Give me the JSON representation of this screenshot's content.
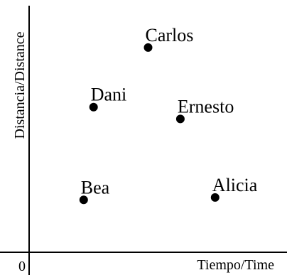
{
  "chart_data": {
    "type": "scatter",
    "xlabel": "Tiempo/Time",
    "ylabel": "Distancia/Distance",
    "origin_label": "0",
    "xlim": [
      0,
      10
    ],
    "ylim": [
      0,
      10
    ],
    "grid": false,
    "point_color": "#000000",
    "points": [
      {
        "label": "Carlos",
        "x": 4.8,
        "y": 8.6
      },
      {
        "label": "Dani",
        "x": 2.6,
        "y": 6.1
      },
      {
        "label": "Ernesto",
        "x": 6.1,
        "y": 5.6
      },
      {
        "label": "Bea",
        "x": 2.2,
        "y": 2.2
      },
      {
        "label": "Alicia",
        "x": 7.5,
        "y": 2.3
      }
    ]
  }
}
